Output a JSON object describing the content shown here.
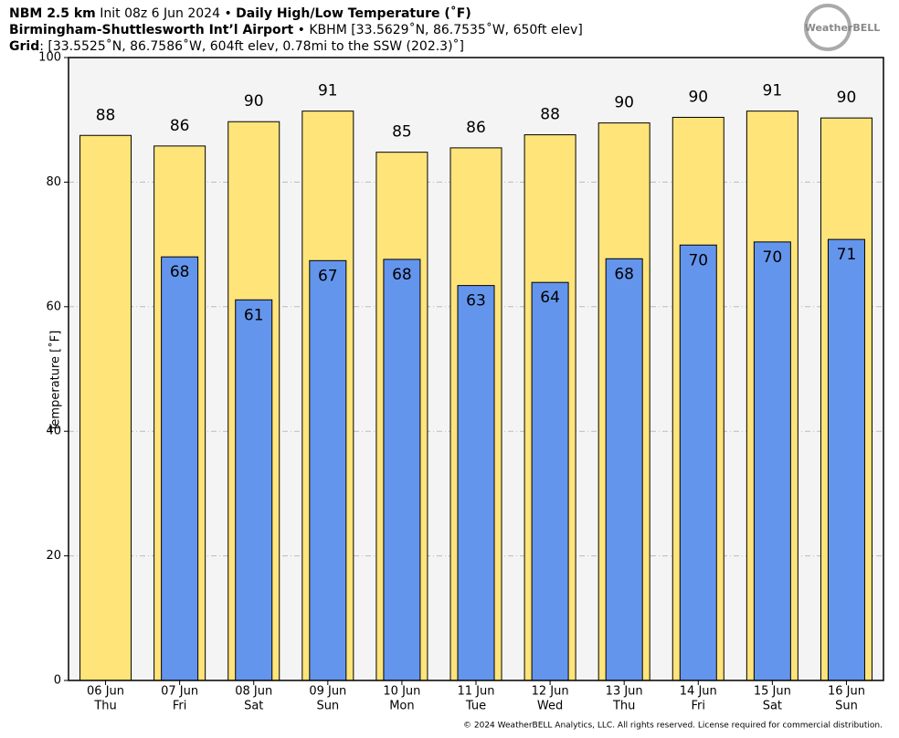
{
  "chart_data": {
    "type": "bar",
    "title_lines": [
      [
        {
          "text": "NBM 2.5 km",
          "bold": true
        },
        {
          "text": " Init 08z 6 Jun 2024 • ",
          "bold": false
        },
        {
          "text": "Daily High/Low Temperature (˚F)",
          "bold": true
        }
      ],
      [
        {
          "text": "Birmingham-Shuttlesworth Int’l Airport",
          "bold": true
        },
        {
          "text": " • KBHM [33.5629˚N, 86.7535˚W, 650ft elev]",
          "bold": false
        }
      ],
      [
        {
          "text": "Grid",
          "bold": true
        },
        {
          "text": ": [33.5525˚N, 86.7586˚W, 604ft elev, 0.78mi to the SSW (202.3)˚]",
          "bold": false
        }
      ]
    ],
    "logo": "WeatherBELL",
    "footer": "© 2024 WeatherBELL Analytics, LLC. All rights reserved. License required for commercial distribution.",
    "y_label": "Temperature [˚F]",
    "categories": [
      "06 Jun",
      "07 Jun",
      "08 Jun",
      "09 Jun",
      "10 Jun",
      "11 Jun",
      "12 Jun",
      "13 Jun",
      "14 Jun",
      "15 Jun",
      "16 Jun"
    ],
    "category_days": [
      "Thu",
      "Fri",
      "Sat",
      "Sun",
      "Mon",
      "Tue",
      "Wed",
      "Thu",
      "Fri",
      "Sat",
      "Sun"
    ],
    "series": [
      {
        "name": "High",
        "color": "#ffe47a",
        "values": [
          87.5,
          85.8,
          89.7,
          91.4,
          84.8,
          85.5,
          87.6,
          89.5,
          90.4,
          91.4,
          90.3
        ],
        "value_labels": [
          "88",
          "86",
          "90",
          "91",
          "85",
          "86",
          "88",
          "90",
          "90",
          "91",
          "90"
        ]
      },
      {
        "name": "Low",
        "color": "#6495ed",
        "values": [
          null,
          68.0,
          61.1,
          67.4,
          67.6,
          63.4,
          63.9,
          67.7,
          69.9,
          70.4,
          70.8
        ],
        "value_labels": [
          null,
          "68",
          "61",
          "67",
          "68",
          "63",
          "64",
          "68",
          "70",
          "70",
          "71"
        ]
      }
    ],
    "ylim": [
      0,
      100
    ],
    "yticks": [
      0,
      20,
      40,
      60,
      80,
      100
    ],
    "grid": true
  }
}
